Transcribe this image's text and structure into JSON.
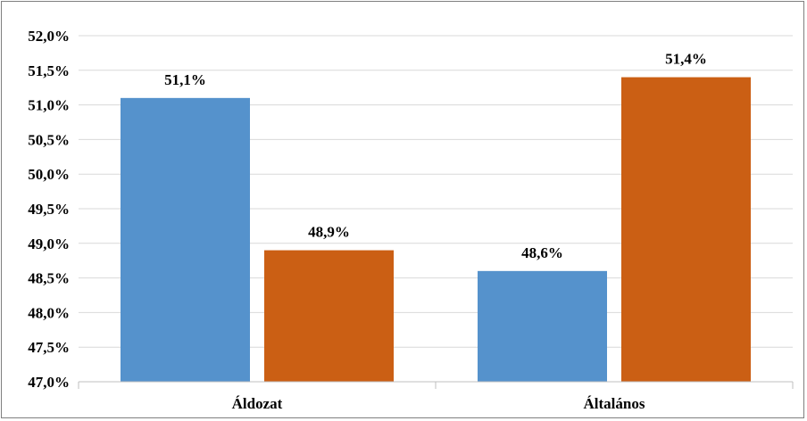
{
  "chart_data": {
    "type": "bar",
    "title": "",
    "xlabel": "",
    "ylabel": "",
    "categories": [
      "Áldozat",
      "Általános"
    ],
    "series": [
      {
        "values": [
          51.1,
          48.6
        ],
        "labels": [
          "51,1%",
          "48,6%"
        ],
        "color": "#5592cc"
      },
      {
        "values": [
          48.9,
          51.4
        ],
        "labels": [
          "48,9%",
          "51,4%"
        ],
        "color": "#cb5f14"
      }
    ],
    "ylim": [
      47.0,
      52.0
    ],
    "ytick_step": 0.5,
    "yticks": [
      "47,0%",
      "47,5%",
      "48,0%",
      "48,5%",
      "49,0%",
      "49,5%",
      "50,0%",
      "50,5%",
      "51,0%",
      "51,5%",
      "52,0%"
    ],
    "grid": true,
    "legend": "none",
    "grid_color": "#d9d9d9",
    "axis_color": "#bfbfbf"
  }
}
